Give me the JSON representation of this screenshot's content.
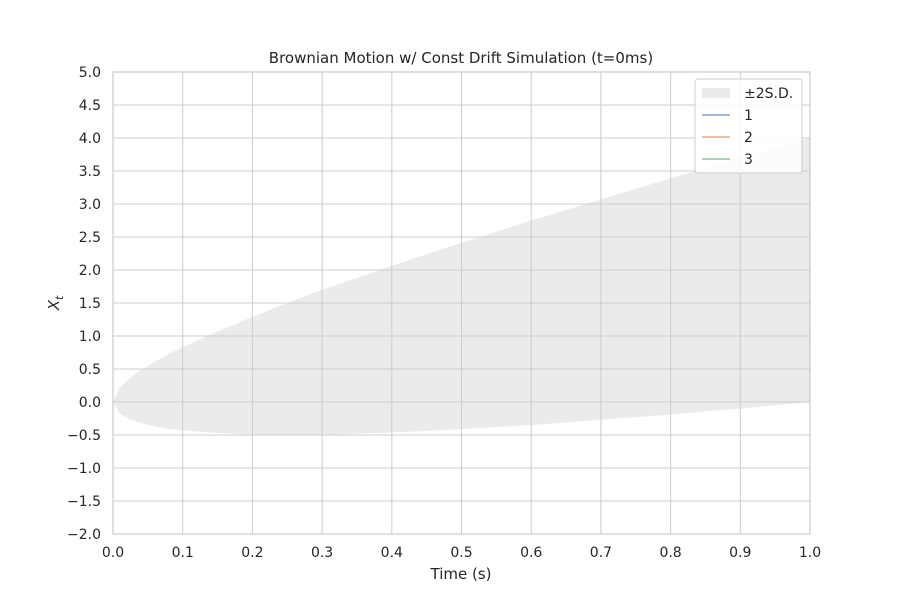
{
  "chart_data": {
    "type": "line",
    "title": "Brownian Motion w/ Const Drift Simulation (t=0ms)",
    "xlabel": "Time (s)",
    "ylabel_main": "X",
    "ylabel_sub": "t",
    "xlim": [
      0.0,
      1.0
    ],
    "ylim": [
      -2.0,
      5.0
    ],
    "xticks": [
      0.0,
      0.1,
      0.2,
      0.3,
      0.4,
      0.5,
      0.6,
      0.7,
      0.8,
      0.9,
      1.0
    ],
    "yticks": [
      -2.0,
      -1.5,
      -1.0,
      -0.5,
      0.0,
      0.5,
      1.0,
      1.5,
      2.0,
      2.5,
      3.0,
      3.5,
      4.0,
      4.5,
      5.0
    ],
    "xtick_labels": [
      "0.0",
      "0.1",
      "0.2",
      "0.3",
      "0.4",
      "0.5",
      "0.6",
      "0.7",
      "0.8",
      "0.9",
      "1.0"
    ],
    "ytick_labels": [
      "−2.0",
      "−1.5",
      "−1.0",
      "−0.5",
      "0.0",
      "0.5",
      "1.0",
      "1.5",
      "2.0",
      "2.5",
      "3.0",
      "3.5",
      "4.0",
      "4.5",
      "5.0"
    ],
    "grid": true,
    "legend_position": "top-right",
    "band": {
      "name": "±2S.D.",
      "color": "#ebebeb",
      "drift": 2.0,
      "sd_multiplier": 2.0,
      "x": [
        0.0,
        0.01,
        0.02,
        0.04,
        0.06,
        0.08,
        0.1,
        0.15,
        0.2,
        0.25,
        0.3,
        0.35,
        0.4,
        0.45,
        0.5,
        0.55,
        0.6,
        0.65,
        0.7,
        0.75,
        0.8,
        0.85,
        0.9,
        0.95,
        1.0
      ],
      "upper": [
        0.0,
        0.22,
        0.32,
        0.48,
        0.61,
        0.73,
        0.83,
        1.07,
        1.29,
        1.5,
        1.7,
        1.88,
        2.06,
        2.24,
        2.41,
        2.58,
        2.75,
        2.91,
        3.07,
        3.23,
        3.39,
        3.54,
        3.7,
        3.85,
        4.0
      ],
      "lower": [
        0.0,
        -0.18,
        -0.24,
        -0.32,
        -0.37,
        -0.41,
        -0.43,
        -0.47,
        -0.49,
        -0.5,
        -0.5,
        -0.48,
        -0.46,
        -0.44,
        -0.41,
        -0.38,
        -0.35,
        -0.31,
        -0.27,
        -0.23,
        -0.19,
        -0.14,
        -0.1,
        -0.05,
        0.0
      ]
    },
    "series": [
      {
        "name": "1",
        "color": "#4c72b0",
        "x": [],
        "y": []
      },
      {
        "name": "2",
        "color": "#dd8452",
        "x": [],
        "y": []
      },
      {
        "name": "3",
        "color": "#55a868",
        "x": [],
        "y": []
      }
    ]
  }
}
